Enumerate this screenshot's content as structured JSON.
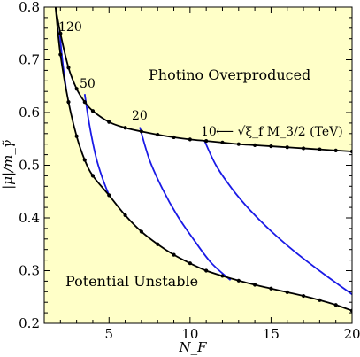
{
  "chart_data": {
    "type": "line",
    "xlabel": "N_F",
    "ylabel": "|μ|/m_γ̃",
    "xlim": [
      1,
      20
    ],
    "ylim": [
      0.2,
      0.8
    ],
    "xticks": [
      "5",
      "10",
      "15",
      "20"
    ],
    "yticks": [
      "0.2",
      "0.3",
      "0.4",
      "0.5",
      "0.6",
      "0.7",
      "0.8"
    ],
    "region_labels": {
      "upper": "Photino Overproduced",
      "lower": "Potential Unstable"
    },
    "curve_labels": {
      "c120": "120",
      "c50": "50",
      "c20": "20",
      "c10": "10",
      "arrow_expr": "⟵ √ξ_f M_3/2 (TeV)"
    },
    "colors": {
      "background": "#FFFFC8",
      "boundary": "#000000",
      "contour": "#1A1AE6"
    },
    "series": [
      {
        "role": "upper-boundary",
        "x": [
          1.7,
          2,
          2.5,
          3,
          3.5,
          4,
          5,
          6,
          7,
          8,
          9,
          10,
          11,
          12,
          13,
          14,
          15,
          16,
          17,
          18,
          19,
          20
        ],
        "y": [
          0.8,
          0.75,
          0.685,
          0.645,
          0.62,
          0.603,
          0.582,
          0.571,
          0.564,
          0.558,
          0.553,
          0.549,
          0.546,
          0.543,
          0.54,
          0.538,
          0.536,
          0.534,
          0.532,
          0.53,
          0.528,
          0.526
        ]
      },
      {
        "role": "lower-boundary",
        "x": [
          1.7,
          2,
          2.5,
          3,
          3.5,
          4,
          5,
          6,
          7,
          8,
          9,
          10,
          11,
          12,
          13,
          14,
          15,
          16,
          17,
          18,
          19,
          20
        ],
        "y": [
          0.8,
          0.71,
          0.62,
          0.555,
          0.51,
          0.48,
          0.443,
          0.405,
          0.374,
          0.35,
          0.33,
          0.314,
          0.3,
          0.29,
          0.281,
          0.273,
          0.266,
          0.259,
          0.252,
          0.244,
          0.235,
          0.224
        ]
      },
      {
        "role": "contour",
        "label": "120",
        "x": [
          1.95,
          2.05,
          2.2,
          2.35
        ],
        "y": [
          0.755,
          0.72,
          0.68,
          0.645
        ]
      },
      {
        "role": "contour",
        "label": "50",
        "x": [
          3.5,
          3.8,
          4.2,
          4.6,
          5.0
        ],
        "y": [
          0.635,
          0.575,
          0.515,
          0.475,
          0.443
        ]
      },
      {
        "role": "contour",
        "label": "20",
        "x": [
          6.9,
          7.5,
          8.3,
          9.2,
          10.2,
          11.3,
          12.5
        ],
        "y": [
          0.572,
          0.51,
          0.455,
          0.405,
          0.36,
          0.315,
          0.282
        ]
      },
      {
        "role": "contour",
        "label": "10",
        "x": [
          10.9,
          11.6,
          12.6,
          13.7,
          15,
          16.5,
          18.2,
          20
        ],
        "y": [
          0.546,
          0.5,
          0.455,
          0.415,
          0.375,
          0.335,
          0.295,
          0.255
        ]
      }
    ]
  }
}
